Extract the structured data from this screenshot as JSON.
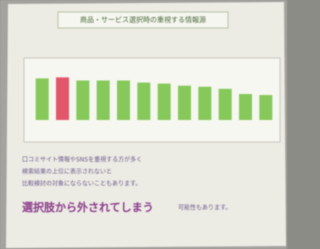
{
  "chart_data": {
    "type": "bar",
    "title": "商品・サービス選択時の重視する情報源",
    "categories": [
      null,
      null,
      null,
      null,
      null,
      null,
      null,
      null,
      null,
      null,
      null,
      null
    ],
    "values": [
      40,
      41,
      38,
      38,
      38,
      36,
      35,
      33,
      32,
      30,
      25,
      24
    ],
    "colors": [
      "#86c95a",
      "#e2566a",
      "#86c95a",
      "#86c95a",
      "#86c95a",
      "#86c95a",
      "#86c95a",
      "#86c95a",
      "#86c95a",
      "#86c95a",
      "#86c95a",
      "#86c95a"
    ],
    "ylim": [
      0,
      50
    ]
  },
  "body": {
    "lines": [
      "口コミサイト情報やSNSを重視する方が多く",
      "検索結果の上位に表示されないと",
      "比較検討の対象にならないこともあります。"
    ],
    "emphasis": "選択肢から外されてしまう",
    "emphasis_tail": "可能性もあります。"
  }
}
